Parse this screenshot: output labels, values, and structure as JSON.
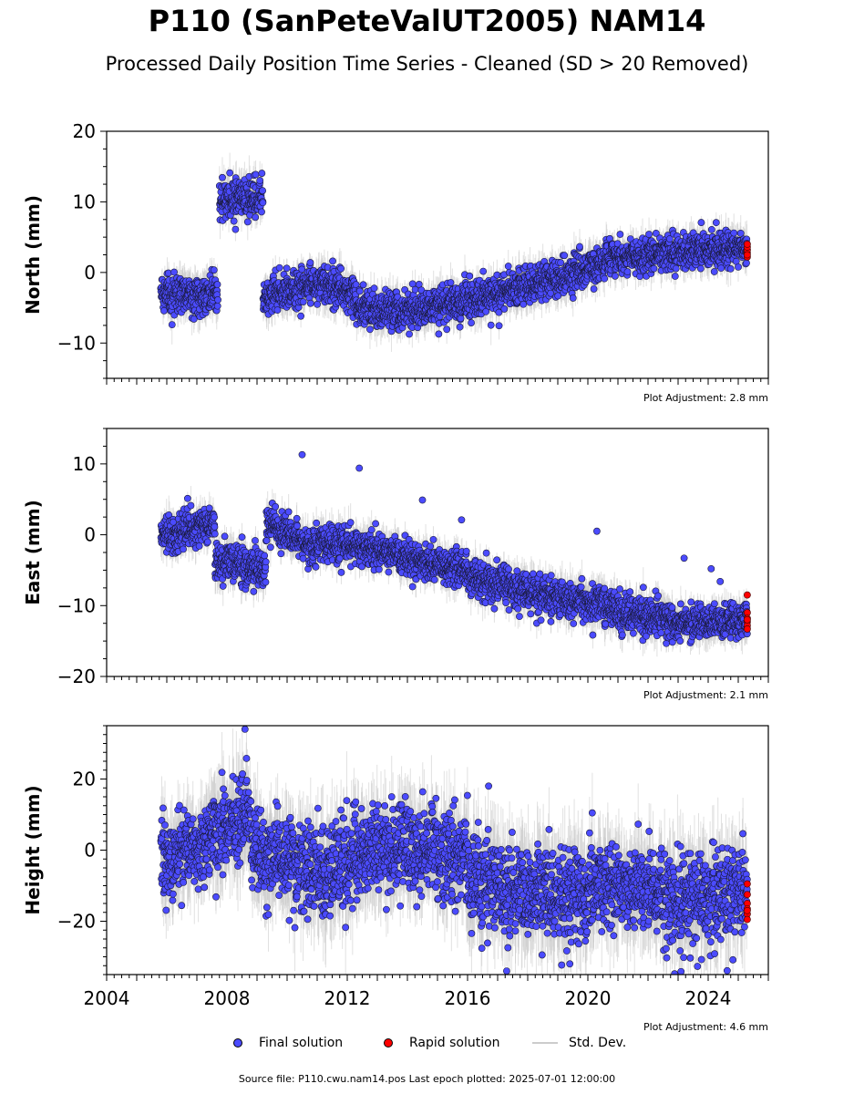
{
  "title": "P110 (SanPeteValUT2005) NAM14",
  "subtitle": "Processed Daily Position Time Series - Cleaned (SD > 20 Removed)",
  "source_note": "Source file: P110.cwu.nam14.pos  Last epoch plotted: 2025-07-01 12:00:00",
  "legend": {
    "final": "Final solution",
    "rapid": "Rapid solution",
    "stddev": "Std. Dev."
  },
  "colors": {
    "final": "#4b4bff",
    "rapid": "#ff0000",
    "stddev": "#c8c8c8"
  },
  "chart_data": [
    {
      "type": "scatter",
      "ylabel": "North (mm)",
      "ylim": [
        -15,
        20
      ],
      "yticks": [
        -10,
        0,
        10,
        20
      ],
      "xlim": [
        2004,
        2026
      ],
      "adjustment": "Plot Adjustment: 2.8 mm",
      "series": [
        {
          "name": "Final solution",
          "segments": [
            {
              "x": [
                2005.8,
                2007.7
              ],
              "y": [
                -3,
                -3
              ],
              "noise": 1.3
            },
            {
              "x": [
                2007.75,
                2009.2
              ],
              "y": [
                10.5,
                10.5
              ],
              "noise": 1.3
            },
            {
              "x": [
                2009.2,
                2011.0
              ],
              "y": [
                -3.5,
                -1.5
              ],
              "noise": 1.3
            },
            {
              "x": [
                2011.0,
                2012.3
              ],
              "y": [
                -1.5,
                -3
              ],
              "noise": 1.3
            },
            {
              "x": [
                2012.3,
                2013.0
              ],
              "y": [
                -5,
                -5.5
              ],
              "noise": 1.3
            },
            {
              "x": [
                2013.0,
                2015.0
              ],
              "y": [
                -5.5,
                -5
              ],
              "noise": 1.3
            },
            {
              "x": [
                2015.0,
                2019.0
              ],
              "y": [
                -5,
                -1
              ],
              "noise": 1.3
            },
            {
              "x": [
                2019.0,
                2021.0
              ],
              "y": [
                -1,
                2
              ],
              "noise": 1.3
            },
            {
              "x": [
                2021.0,
                2023.0
              ],
              "y": [
                2,
                3
              ],
              "noise": 1.2
            },
            {
              "x": [
                2023.0,
                2025.3
              ],
              "y": [
                3,
                3.5
              ],
              "noise": 1.2
            }
          ]
        },
        {
          "name": "Rapid solution",
          "x": [
            2025.3,
            2025.3,
            2025.3,
            2025.3,
            2025.3,
            2025.3
          ],
          "y": [
            2.2,
            2.8,
            3.2,
            3.6,
            4.0,
            2.5
          ]
        }
      ]
    },
    {
      "type": "scatter",
      "ylabel": "East (mm)",
      "ylim": [
        -20,
        15
      ],
      "yticks": [
        -20,
        -10,
        0,
        10
      ],
      "xlim": [
        2004,
        2026
      ],
      "adjustment": "Plot Adjustment: 2.1 mm",
      "series": [
        {
          "name": "Final solution",
          "segments": [
            {
              "x": [
                2005.8,
                2007.6
              ],
              "y": [
                0,
                1.5
              ],
              "noise": 1.2
            },
            {
              "x": [
                2007.6,
                2009.3
              ],
              "y": [
                -3.5,
                -5
              ],
              "noise": 1.3
            },
            {
              "x": [
                2009.3,
                2010.0
              ],
              "y": [
                2,
                0
              ],
              "noise": 1.2
            },
            {
              "x": [
                2010.0,
                2011.0
              ],
              "y": [
                0,
                -2
              ],
              "noise": 1.2
            },
            {
              "x": [
                2011.0,
                2012.5
              ],
              "y": [
                -1,
                -1.5
              ],
              "noise": 1.2
            },
            {
              "x": [
                2012.5,
                2016.0
              ],
              "y": [
                -2,
                -5
              ],
              "noise": 1.2
            },
            {
              "x": [
                2016.0,
                2019.0
              ],
              "y": [
                -6,
                -9
              ],
              "noise": 1.3
            },
            {
              "x": [
                2019.0,
                2021.0
              ],
              "y": [
                -9,
                -10
              ],
              "noise": 1.3
            },
            {
              "x": [
                2021.0,
                2023.0
              ],
              "y": [
                -11,
                -12.5
              ],
              "noise": 1.3
            },
            {
              "x": [
                2023.0,
                2025.3
              ],
              "y": [
                -12.5,
                -12
              ],
              "noise": 1.2
            }
          ],
          "outliers": {
            "x": [
              2010.5,
              2012.4,
              2014.5,
              2015.8,
              2020.3,
              2023.2,
              2024.1,
              2024.4
            ],
            "y": [
              11.3,
              9.4,
              4.9,
              2.1,
              0.5,
              -3.3,
              -4.8,
              -6.6
            ]
          }
        },
        {
          "name": "Rapid solution",
          "x": [
            2025.3,
            2025.3,
            2025.3,
            2025.3,
            2025.3,
            2025.3,
            2025.3
          ],
          "y": [
            -8.5,
            -11,
            -11.8,
            -12.3,
            -12.8,
            -13.3,
            -12.0
          ]
        }
      ]
    },
    {
      "type": "scatter",
      "ylabel": "Height (mm)",
      "ylim": [
        -35,
        35
      ],
      "yticks": [
        -20,
        0,
        20
      ],
      "xlim": [
        2004,
        2026
      ],
      "xticks": [
        2004,
        2008,
        2012,
        2016,
        2020,
        2024
      ],
      "adjustment": "Plot Adjustment: 4.6 mm",
      "series": [
        {
          "name": "Final solution",
          "segments": [
            {
              "x": [
                2005.8,
                2007.5
              ],
              "y": [
                -2,
                2
              ],
              "noise": 5.5
            },
            {
              "x": [
                2007.5,
                2008.8
              ],
              "y": [
                4,
                10
              ],
              "noise": 6
            },
            {
              "x": [
                2008.8,
                2011.0
              ],
              "y": [
                0,
                -5
              ],
              "noise": 6
            },
            {
              "x": [
                2011.0,
                2013.0
              ],
              "y": [
                -8,
                0
              ],
              "noise": 6.5
            },
            {
              "x": [
                2013.0,
                2016.0
              ],
              "y": [
                0,
                -2
              ],
              "noise": 6
            },
            {
              "x": [
                2016.0,
                2018.0
              ],
              "y": [
                -8,
                -12
              ],
              "noise": 6.5
            },
            {
              "x": [
                2018.0,
                2020.0
              ],
              "y": [
                -10,
                -14
              ],
              "noise": 6.5
            },
            {
              "x": [
                2020.0,
                2022.5
              ],
              "y": [
                -10,
                -12
              ],
              "noise": 6
            },
            {
              "x": [
                2022.5,
                2025.3
              ],
              "y": [
                -14,
                -12
              ],
              "noise": 6.5
            }
          ],
          "outliers": {
            "x": [
              2008.6,
              2016.7,
              2017.3,
              2019.4
            ],
            "y": [
              34,
              18,
              -34,
              -32
            ]
          }
        },
        {
          "name": "Rapid solution",
          "x": [
            2025.3,
            2025.3,
            2025.3,
            2025.3,
            2025.3,
            2025.3,
            2025.3
          ],
          "y": [
            -9.5,
            -12.5,
            -15,
            -16.5,
            -18,
            -19.5,
            -17
          ]
        }
      ]
    }
  ]
}
